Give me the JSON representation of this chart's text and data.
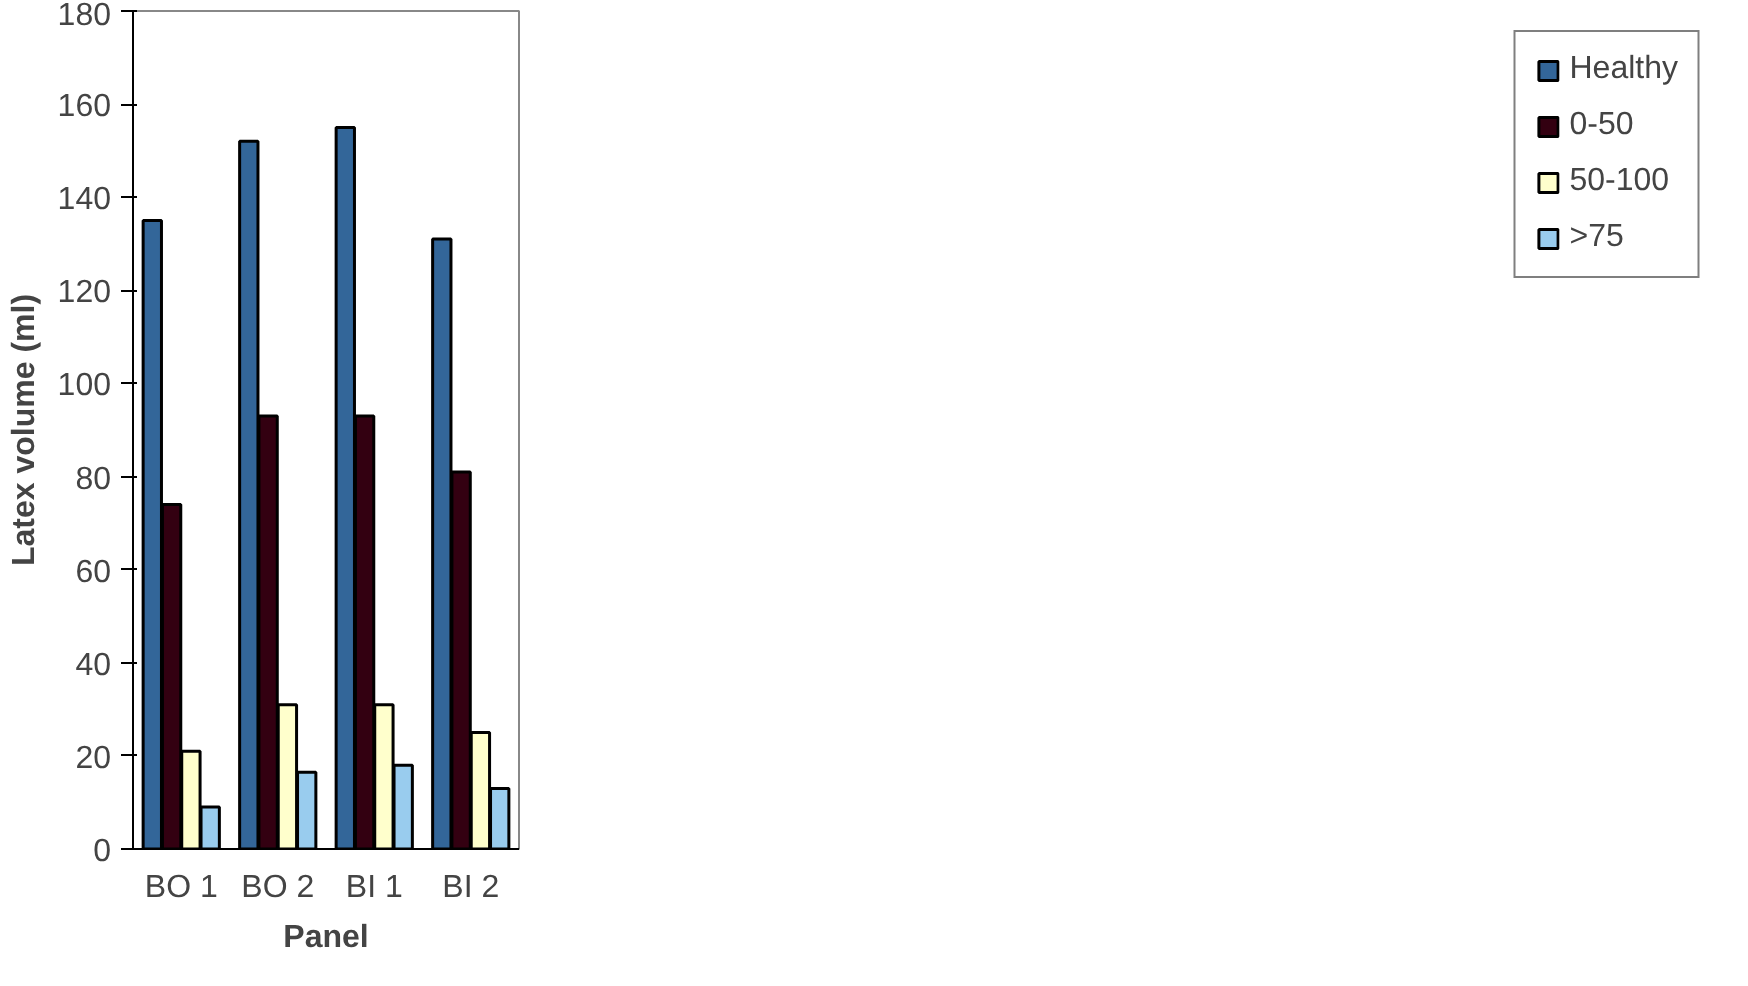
{
  "chart_data": {
    "type": "bar",
    "xlabel": "Panel",
    "ylabel": "Latex volume (ml)",
    "categories": [
      "BO 1",
      "BO 2",
      "BI 1",
      "BI 2"
    ],
    "series": [
      {
        "name": "Healthy",
        "color": "#336699",
        "values": [
          135,
          152,
          155,
          131
        ]
      },
      {
        "name": "0-50",
        "color": "#330011",
        "values": [
          74,
          93,
          93,
          81
        ]
      },
      {
        "name": "50-100",
        "color": "#ffffcc",
        "values": [
          21,
          31,
          31,
          25
        ]
      },
      {
        "name": ">75",
        "color": "#99ccee",
        "values": [
          9,
          16.5,
          18,
          13
        ]
      }
    ],
    "ylim": [
      0,
      180
    ],
    "yticks": [
      0,
      20,
      40,
      60,
      80,
      100,
      120,
      140,
      160,
      180
    ],
    "grid": false,
    "legend": "right"
  }
}
